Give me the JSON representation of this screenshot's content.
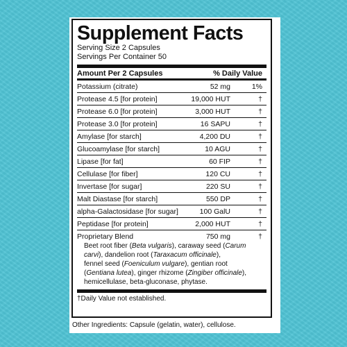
{
  "title": "Supplement Facts",
  "serving_size": "Serving Size 2 Capsules",
  "servings_per_container": "Servings Per Container 50",
  "header": {
    "amount_per": "Amount Per 2 Capsules",
    "daily_value": "% Daily Value"
  },
  "rows": [
    {
      "name": "Potassium (citrate)",
      "amount": "52 mg",
      "dv": "1%"
    },
    {
      "name": "Protease 4.5 [for protein]",
      "amount": "19,000 HUT",
      "dv": "†"
    },
    {
      "name": "Protease 6.0 [for protein]",
      "amount": "3,000 HUT",
      "dv": "†"
    },
    {
      "name": "Protease 3.0 [for protein]",
      "amount": "16 SAPU",
      "dv": "†"
    },
    {
      "name": "Amylase [for starch]",
      "amount": "4,200 DU",
      "dv": "†"
    },
    {
      "name": "Glucoamylase [for starch]",
      "amount": "10 AGU",
      "dv": "†"
    },
    {
      "name": "Lipase [for fat]",
      "amount": "60 FIP",
      "dv": "†"
    },
    {
      "name": "Cellulase [for fiber]",
      "amount": "120 CU",
      "dv": "†"
    },
    {
      "name": "Invertase [for sugar]",
      "amount": "220 SU",
      "dv": "†"
    },
    {
      "name": "Malt Diastase [for starch]",
      "amount": "550 DP",
      "dv": "†"
    },
    {
      "name": "alpha-Galactosidase [for sugar]",
      "amount": "100 GalU",
      "dv": "†"
    },
    {
      "name": "Peptidase [for protein]",
      "amount": "2,000 HUT",
      "dv": "†"
    }
  ],
  "blend": {
    "name": "Proprietary Blend",
    "amount": "750 mg",
    "dv": "†",
    "lines": [
      [
        "Beet root fiber (",
        "Beta vulgaris",
        "), caraway seed (",
        "Carum"
      ],
      [
        "carvi",
        "), dandelion root (",
        "Taraxacum officinale",
        "),"
      ],
      [
        "fennel seed (",
        "Foeniculum vulgare",
        "), gentian root"
      ],
      [
        "(",
        "Gentiana lutea",
        "), ginger rhizome (",
        "Zingiber officinale",
        "),"
      ],
      [
        "hemicellulase, beta-gluconase, phytase."
      ]
    ]
  },
  "footnote": "†Daily Value not established.",
  "other_ingredients": "Other Ingredients: Capsule (gelatin, water), cellulose."
}
